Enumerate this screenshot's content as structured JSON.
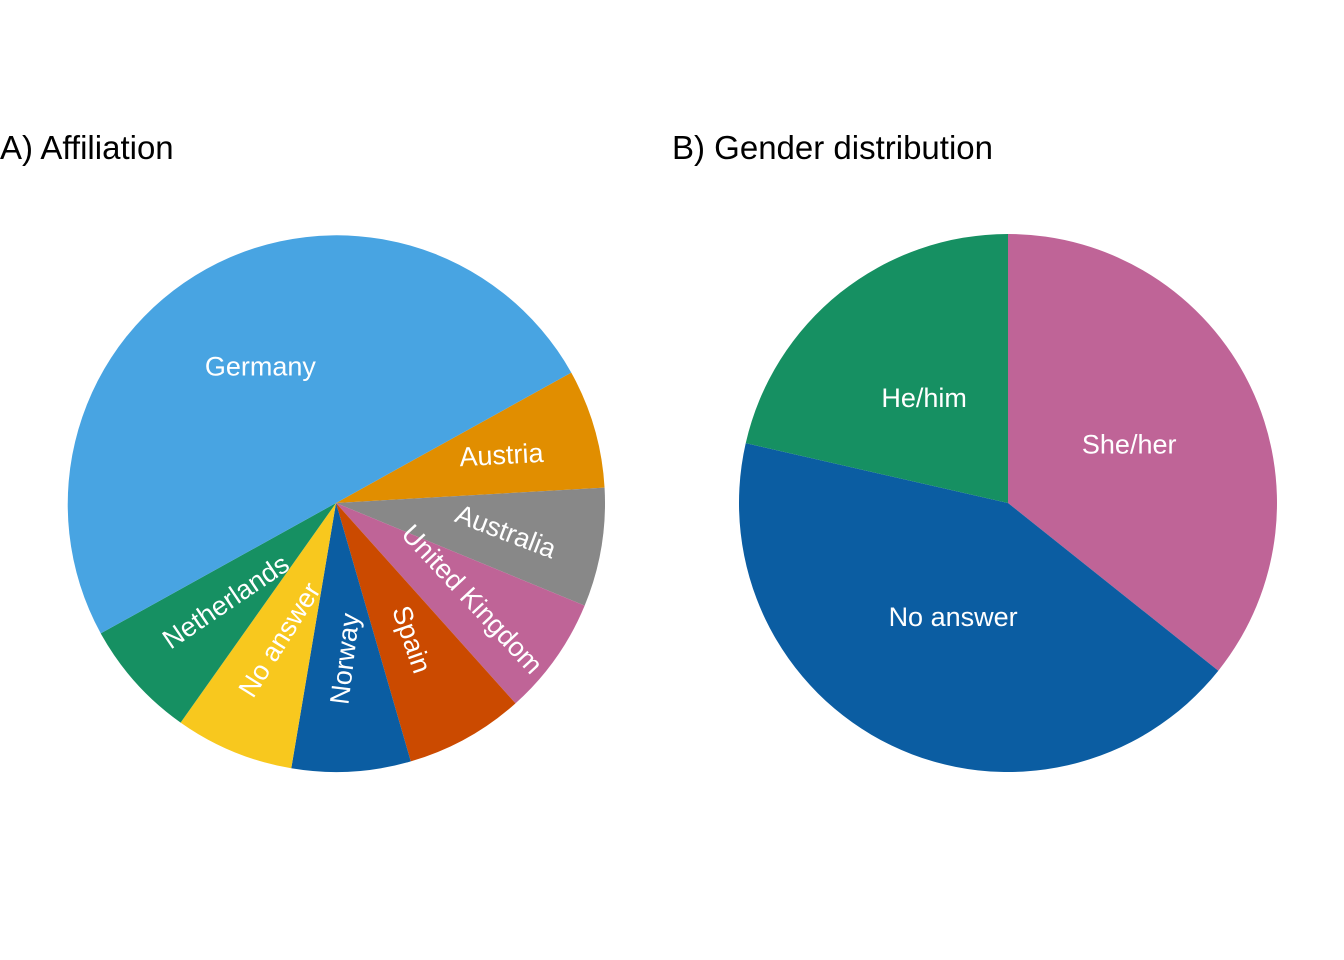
{
  "chart_data": [
    {
      "type": "pie",
      "title": "A) Affiliation",
      "start_angle_deg": 61,
      "direction": "clockwise",
      "slices": [
        {
          "label": "Austria",
          "value": 1,
          "color": "#E18E00"
        },
        {
          "label": "Australia",
          "value": 1,
          "color": "#888888"
        },
        {
          "label": "United Kingdom",
          "value": 1,
          "color": "#BF6497"
        },
        {
          "label": "Spain",
          "value": 1,
          "color": "#CB4A00"
        },
        {
          "label": "Norway",
          "value": 1,
          "color": "#0B5DA2"
        },
        {
          "label": "No answer",
          "value": 1,
          "color": "#F8C81E"
        },
        {
          "label": "Netherlands",
          "value": 1,
          "color": "#169062"
        },
        {
          "label": "Germany",
          "value": 7,
          "color": "#48A4E2"
        }
      ]
    },
    {
      "type": "pie",
      "title": "B) Gender distribution",
      "start_angle_deg": 0,
      "direction": "clockwise",
      "slices": [
        {
          "label": "She/her",
          "value": 5,
          "color": "#BF6497"
        },
        {
          "label": "No answer",
          "value": 6,
          "color": "#0B5DA2"
        },
        {
          "label": "He/him",
          "value": 3,
          "color": "#169062"
        }
      ]
    }
  ]
}
